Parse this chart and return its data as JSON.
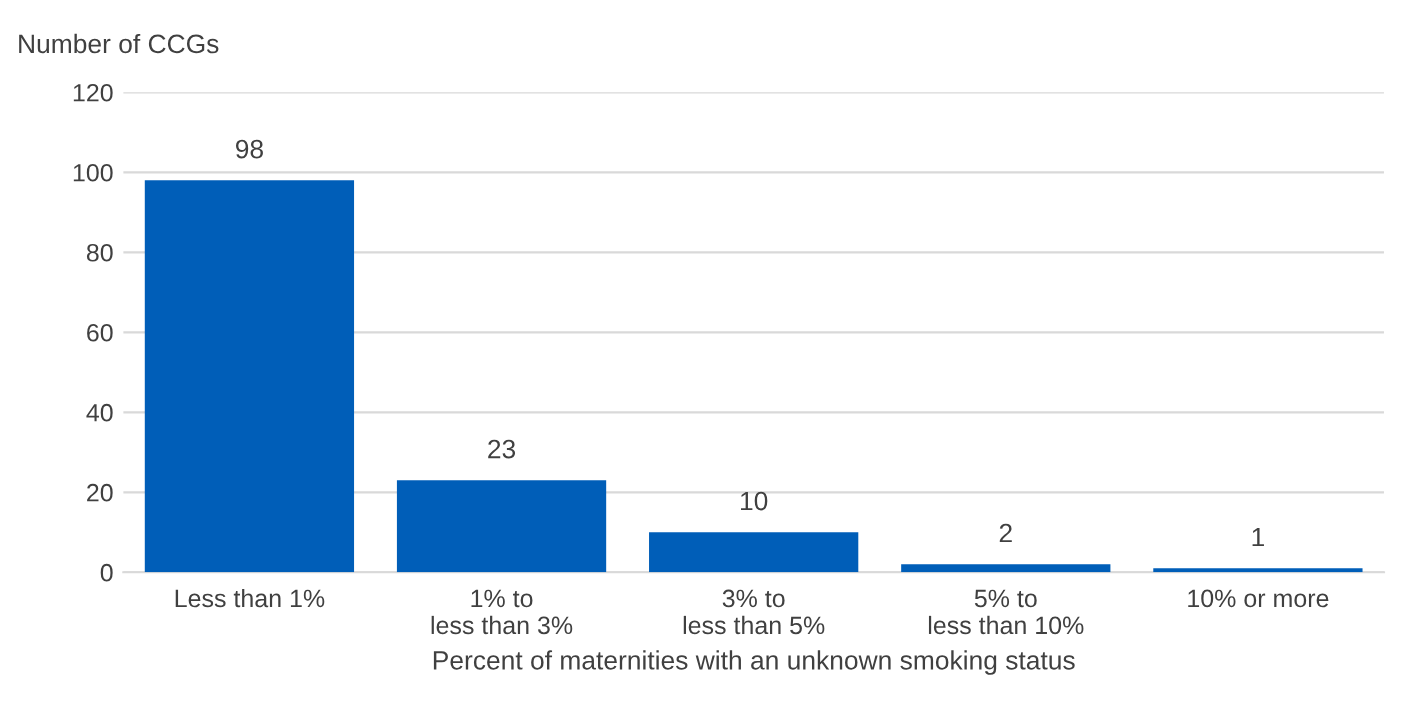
{
  "chart_data": {
    "type": "bar",
    "ylabel": "Number of CCGs",
    "xlabel": "Percent of maternities with an unknown smoking status",
    "categories": [
      "Less than 1%",
      "1% to\nless than 3%",
      "3% to\nless than 5%",
      "5% to\nless than 10%",
      "10% or more"
    ],
    "values": [
      98,
      23,
      10,
      2,
      1
    ],
    "color": "#005eb8",
    "ylim": [
      0,
      120
    ],
    "yticks": [
      0,
      20,
      40,
      60,
      80,
      100,
      120
    ],
    "grid": "y",
    "data_labels": true
  }
}
